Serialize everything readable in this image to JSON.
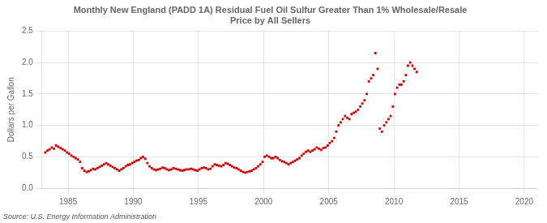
{
  "chart_data": {
    "type": "scatter",
    "title": "Monthly New England (PADD 1A) Residual Fuel Oil Sulfur Greater Than 1% Wholesale/Resale\nPrice by All Sellers",
    "y_label": "Dollars per Gallon",
    "source": "Source: U.S. Energy Information Administration",
    "color": "#cc0000",
    "marker": "square",
    "grid": true,
    "xlim": [
      1983,
      2021
    ],
    "ylim": [
      0.0,
      2.5
    ],
    "xticks": [
      1985,
      1990,
      1995,
      2000,
      2005,
      2010,
      2015,
      2020
    ],
    "yticks": [
      {
        "value": 0.0,
        "label": "0.0"
      },
      0.5,
      {
        "value": 1.0,
        "label": "1.0"
      },
      1.5,
      {
        "value": 2.0,
        "label": "2.0"
      },
      2.5
    ],
    "x": [
      1983.25,
      1983.42,
      1983.58,
      1983.75,
      1983.92,
      1984.08,
      1984.25,
      1984.42,
      1984.58,
      1984.75,
      1984.92,
      1985.08,
      1985.25,
      1985.42,
      1985.58,
      1985.75,
      1985.92,
      1986.08,
      1986.25,
      1986.42,
      1986.58,
      1986.75,
      1986.92,
      1987.08,
      1987.25,
      1987.42,
      1987.58,
      1987.75,
      1987.92,
      1988.08,
      1988.25,
      1988.42,
      1988.58,
      1988.75,
      1988.92,
      1989.08,
      1989.25,
      1989.42,
      1989.58,
      1989.75,
      1989.92,
      1990.08,
      1990.25,
      1990.42,
      1990.58,
      1990.75,
      1990.92,
      1991.08,
      1991.25,
      1991.42,
      1991.58,
      1991.75,
      1991.92,
      1992.08,
      1992.25,
      1992.42,
      1992.58,
      1992.75,
      1992.92,
      1993.08,
      1993.25,
      1993.42,
      1993.58,
      1993.75,
      1993.92,
      1994.08,
      1994.25,
      1994.42,
      1994.58,
      1994.75,
      1994.92,
      1995.08,
      1995.25,
      1995.42,
      1995.58,
      1995.75,
      1995.92,
      1996.08,
      1996.25,
      1996.42,
      1996.58,
      1996.75,
      1996.92,
      1997.08,
      1997.25,
      1997.42,
      1997.58,
      1997.75,
      1997.92,
      1998.08,
      1998.25,
      1998.42,
      1998.58,
      1998.75,
      1998.92,
      1999.08,
      1999.25,
      1999.42,
      1999.58,
      1999.75,
      1999.92,
      2000.08,
      2000.25,
      2000.42,
      2000.58,
      2000.75,
      2000.92,
      2001.08,
      2001.25,
      2001.42,
      2001.58,
      2001.75,
      2001.92,
      2002.08,
      2002.25,
      2002.42,
      2002.58,
      2002.75,
      2002.92,
      2003.08,
      2003.25,
      2003.42,
      2003.58,
      2003.75,
      2003.92,
      2004.08,
      2004.25,
      2004.42,
      2004.58,
      2004.75,
      2004.92,
      2005.08,
      2005.25,
      2005.42,
      2005.58,
      2005.75,
      2005.92,
      2006.08,
      2006.25,
      2006.42,
      2006.58,
      2006.75,
      2006.92,
      2007.08,
      2007.25,
      2007.42,
      2007.58,
      2007.75,
      2007.92,
      2008.08,
      2008.25,
      2008.42,
      2008.58,
      2008.75,
      2008.92,
      2009.08,
      2009.25,
      2009.42,
      2009.58,
      2009.75,
      2009.92,
      2010.08,
      2010.25,
      2010.42,
      2010.58,
      2010.75,
      2010.92,
      2011.08,
      2011.25,
      2011.42,
      2011.58,
      2011.75
    ],
    "values": [
      0.57,
      0.6,
      0.62,
      0.65,
      0.63,
      0.68,
      0.66,
      0.64,
      0.62,
      0.6,
      0.57,
      0.55,
      0.52,
      0.5,
      0.48,
      0.46,
      0.42,
      0.32,
      0.28,
      0.26,
      0.27,
      0.29,
      0.31,
      0.3,
      0.32,
      0.34,
      0.36,
      0.38,
      0.4,
      0.38,
      0.36,
      0.34,
      0.32,
      0.3,
      0.28,
      0.3,
      0.32,
      0.35,
      0.37,
      0.38,
      0.4,
      0.42,
      0.44,
      0.45,
      0.48,
      0.5,
      0.47,
      0.4,
      0.35,
      0.32,
      0.3,
      0.29,
      0.3,
      0.31,
      0.33,
      0.32,
      0.3,
      0.29,
      0.3,
      0.32,
      0.31,
      0.3,
      0.29,
      0.28,
      0.29,
      0.3,
      0.3,
      0.31,
      0.3,
      0.29,
      0.28,
      0.3,
      0.32,
      0.33,
      0.32,
      0.3,
      0.31,
      0.35,
      0.38,
      0.37,
      0.36,
      0.35,
      0.37,
      0.4,
      0.39,
      0.37,
      0.35,
      0.33,
      0.32,
      0.3,
      0.28,
      0.26,
      0.25,
      0.26,
      0.27,
      0.28,
      0.3,
      0.32,
      0.35,
      0.38,
      0.42,
      0.5,
      0.52,
      0.5,
      0.48,
      0.48,
      0.5,
      0.48,
      0.45,
      0.43,
      0.42,
      0.4,
      0.38,
      0.4,
      0.42,
      0.44,
      0.46,
      0.48,
      0.52,
      0.55,
      0.58,
      0.6,
      0.58,
      0.6,
      0.62,
      0.65,
      0.63,
      0.61,
      0.64,
      0.65,
      0.68,
      0.72,
      0.75,
      0.8,
      0.9,
      1.0,
      1.05,
      1.1,
      1.15,
      1.12,
      1.1,
      1.18,
      1.2,
      1.22,
      1.25,
      1.3,
      1.35,
      1.4,
      1.5,
      1.7,
      1.75,
      1.8,
      2.15,
      1.9,
      0.95,
      0.9,
      1.0,
      1.05,
      1.1,
      1.15,
      1.3,
      1.5,
      1.6,
      1.65,
      1.65,
      1.7,
      1.8,
      1.95,
      2.0,
      1.95,
      1.9,
      1.85
    ]
  }
}
